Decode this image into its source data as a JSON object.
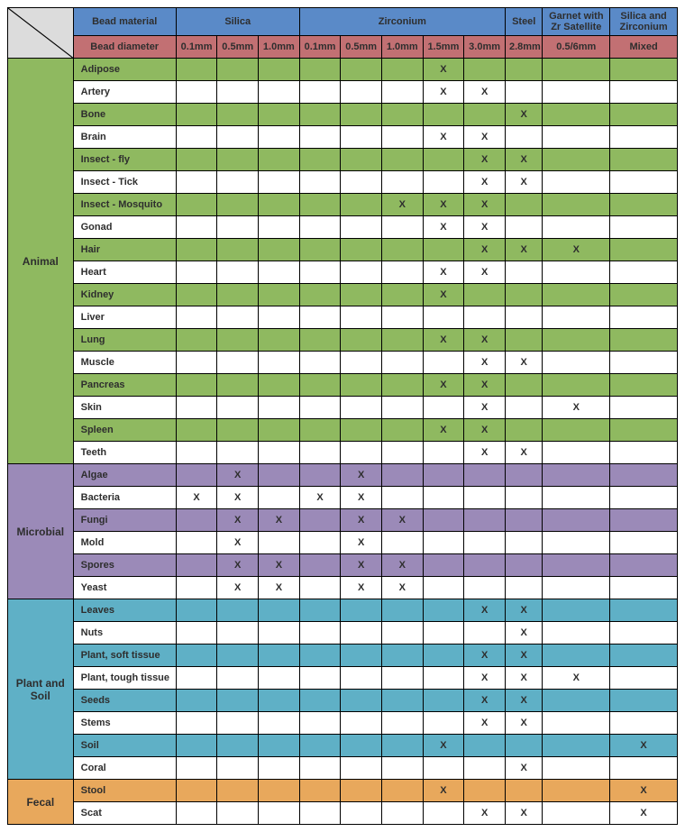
{
  "header": {
    "beadMaterialLabel": "Bead material",
    "beadDiameterLabel": "Bead diameter",
    "materials": [
      "Silica",
      "Zirconium",
      "Steel",
      "Garnet with Zr Satellite",
      "Silica and Zirconium"
    ],
    "materialSpans": [
      3,
      5,
      1,
      1,
      1
    ],
    "diameters": [
      "0.1mm",
      "0.5mm",
      "1.0mm",
      "0.1mm",
      "0.5mm",
      "1.0mm",
      "1.5mm",
      "3.0mm",
      "2.8mm",
      "0.5/6mm",
      "Mixed"
    ]
  },
  "colors": {
    "headerBlue": "#5a8ac8",
    "headerRed": "#c27073",
    "corner": "#dcdcdc",
    "categories": {
      "Animal": {
        "main": "#8fb960",
        "alt": "#ffffff"
      },
      "Microbial": {
        "main": "#9b8ab8",
        "alt": "#ffffff"
      },
      "PlantSoil": {
        "main": "#5fb0c6",
        "alt": "#ffffff"
      },
      "Fecal": {
        "main": "#e8a85c",
        "alt": "#ffffff"
      }
    }
  },
  "mark": "X",
  "categories": [
    {
      "id": "Animal",
      "label": "Animal",
      "rows": [
        {
          "name": "Adipose",
          "marks": [
            0,
            0,
            0,
            0,
            0,
            0,
            1,
            0,
            0,
            0,
            0
          ]
        },
        {
          "name": "Artery",
          "marks": [
            0,
            0,
            0,
            0,
            0,
            0,
            1,
            1,
            0,
            0,
            0
          ]
        },
        {
          "name": "Bone",
          "marks": [
            0,
            0,
            0,
            0,
            0,
            0,
            0,
            0,
            1,
            0,
            0
          ]
        },
        {
          "name": "Brain",
          "marks": [
            0,
            0,
            0,
            0,
            0,
            0,
            1,
            1,
            0,
            0,
            0
          ]
        },
        {
          "name": "Insect - fly",
          "marks": [
            0,
            0,
            0,
            0,
            0,
            0,
            0,
            1,
            1,
            0,
            0
          ]
        },
        {
          "name": "Insect - Tick",
          "marks": [
            0,
            0,
            0,
            0,
            0,
            0,
            0,
            1,
            1,
            0,
            0
          ]
        },
        {
          "name": "Insect - Mosquito",
          "marks": [
            0,
            0,
            0,
            0,
            0,
            1,
            1,
            1,
            0,
            0,
            0
          ]
        },
        {
          "name": "Gonad",
          "marks": [
            0,
            0,
            0,
            0,
            0,
            0,
            1,
            1,
            0,
            0,
            0
          ]
        },
        {
          "name": "Hair",
          "marks": [
            0,
            0,
            0,
            0,
            0,
            0,
            0,
            1,
            1,
            1,
            0
          ]
        },
        {
          "name": "Heart",
          "marks": [
            0,
            0,
            0,
            0,
            0,
            0,
            1,
            1,
            0,
            0,
            0
          ]
        },
        {
          "name": "Kidney",
          "marks": [
            0,
            0,
            0,
            0,
            0,
            0,
            1,
            0,
            0,
            0,
            0
          ]
        },
        {
          "name": "Liver",
          "marks": [
            0,
            0,
            0,
            0,
            0,
            0,
            0,
            0,
            0,
            0,
            0
          ]
        },
        {
          "name": "Lung",
          "marks": [
            0,
            0,
            0,
            0,
            0,
            0,
            1,
            1,
            0,
            0,
            0
          ]
        },
        {
          "name": "Muscle",
          "marks": [
            0,
            0,
            0,
            0,
            0,
            0,
            0,
            1,
            1,
            0,
            0
          ]
        },
        {
          "name": "Pancreas",
          "marks": [
            0,
            0,
            0,
            0,
            0,
            0,
            1,
            1,
            0,
            0,
            0
          ]
        },
        {
          "name": "Skin",
          "marks": [
            0,
            0,
            0,
            0,
            0,
            0,
            0,
            1,
            0,
            1,
            0
          ]
        },
        {
          "name": "Spleen",
          "marks": [
            0,
            0,
            0,
            0,
            0,
            0,
            1,
            1,
            0,
            0,
            0
          ]
        },
        {
          "name": "Teeth",
          "marks": [
            0,
            0,
            0,
            0,
            0,
            0,
            0,
            1,
            1,
            0,
            0
          ]
        }
      ]
    },
    {
      "id": "Microbial",
      "label": "Microbial",
      "rows": [
        {
          "name": "Algae",
          "marks": [
            0,
            1,
            0,
            0,
            1,
            0,
            0,
            0,
            0,
            0,
            0
          ]
        },
        {
          "name": "Bacteria",
          "marks": [
            1,
            1,
            0,
            1,
            1,
            0,
            0,
            0,
            0,
            0,
            0
          ]
        },
        {
          "name": "Fungi",
          "marks": [
            0,
            1,
            1,
            0,
            1,
            1,
            0,
            0,
            0,
            0,
            0
          ]
        },
        {
          "name": "Mold",
          "marks": [
            0,
            1,
            0,
            0,
            1,
            0,
            0,
            0,
            0,
            0,
            0
          ]
        },
        {
          "name": "Spores",
          "marks": [
            0,
            1,
            1,
            0,
            1,
            1,
            0,
            0,
            0,
            0,
            0
          ]
        },
        {
          "name": "Yeast",
          "marks": [
            0,
            1,
            1,
            0,
            1,
            1,
            0,
            0,
            0,
            0,
            0
          ]
        }
      ]
    },
    {
      "id": "PlantSoil",
      "label": "Plant and Soil",
      "rows": [
        {
          "name": "Leaves",
          "marks": [
            0,
            0,
            0,
            0,
            0,
            0,
            0,
            1,
            1,
            0,
            0
          ]
        },
        {
          "name": "Nuts",
          "marks": [
            0,
            0,
            0,
            0,
            0,
            0,
            0,
            0,
            1,
            0,
            0
          ]
        },
        {
          "name": "Plant, soft tissue",
          "marks": [
            0,
            0,
            0,
            0,
            0,
            0,
            0,
            1,
            1,
            0,
            0
          ]
        },
        {
          "name": "Plant, tough tissue",
          "marks": [
            0,
            0,
            0,
            0,
            0,
            0,
            0,
            1,
            1,
            1,
            0
          ]
        },
        {
          "name": "Seeds",
          "marks": [
            0,
            0,
            0,
            0,
            0,
            0,
            0,
            1,
            1,
            0,
            0
          ]
        },
        {
          "name": "Stems",
          "marks": [
            0,
            0,
            0,
            0,
            0,
            0,
            0,
            1,
            1,
            0,
            0
          ]
        },
        {
          "name": "Soil",
          "marks": [
            0,
            0,
            0,
            0,
            0,
            0,
            1,
            0,
            0,
            0,
            1
          ]
        },
        {
          "name": "Coral",
          "marks": [
            0,
            0,
            0,
            0,
            0,
            0,
            0,
            0,
            1,
            0,
            0
          ]
        }
      ]
    },
    {
      "id": "Fecal",
      "label": "Fecal",
      "rows": [
        {
          "name": "Stool",
          "marks": [
            0,
            0,
            0,
            0,
            0,
            0,
            1,
            0,
            0,
            0,
            1
          ]
        },
        {
          "name": "Scat",
          "marks": [
            0,
            0,
            0,
            0,
            0,
            0,
            0,
            1,
            1,
            0,
            1
          ]
        }
      ]
    }
  ],
  "layout": {
    "colWidths": {
      "category": 70,
      "rowLabel": 110,
      "data": 51
    },
    "fontSizePt": 8,
    "rowHeightPx": 22
  }
}
